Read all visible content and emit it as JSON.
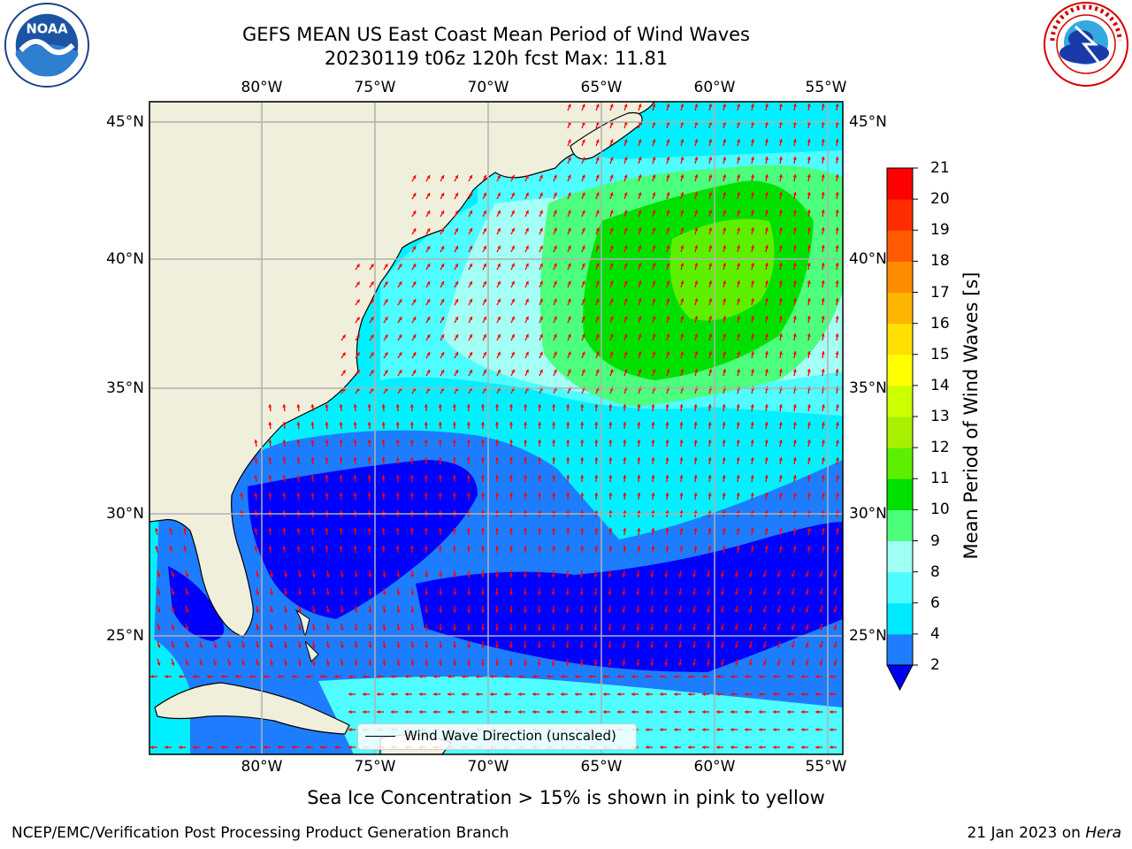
{
  "title": {
    "line1": "GEFS MEAN US East Coast Mean Period of Wind Waves",
    "line2": "20230119 t06z 120h fcst   Max: 11.81"
  },
  "map": {
    "lon_labels": [
      "80°W",
      "75°W",
      "70°W",
      "65°W",
      "60°W",
      "55°W"
    ],
    "lat_labels": [
      "45°N",
      "40°N",
      "35°N",
      "30°N",
      "25°N"
    ],
    "land_color": "#efefdc",
    "gridline_color": "#b0b0b0",
    "arrow_color": "#ff0000"
  },
  "colorbar": {
    "label": "Mean Period of Wind Waves [s]",
    "ticks": [
      "21",
      "20",
      "19",
      "18",
      "17",
      "16",
      "15",
      "14",
      "13",
      "12",
      "11",
      "10",
      "9",
      "8",
      "6",
      "4",
      "2"
    ],
    "colors": [
      "#0000ff",
      "#1e7dff",
      "#00eaff",
      "#4dfcff",
      "#a0fff5",
      "#4cff7a",
      "#00e000",
      "#5cf000",
      "#a8f000",
      "#ccff00",
      "#ffff00",
      "#ffe000",
      "#ffb400",
      "#ff8c00",
      "#ff5a00",
      "#ff2d00",
      "#ff0000"
    ],
    "extend_color": "#0000ee"
  },
  "legend": {
    "text": "Wind Wave Direction (unscaled)"
  },
  "ice_note": "Sea Ice Concentration > 15% is shown in pink to yellow",
  "footer": {
    "left": "NCEP/EMC/Verification Post Processing Product Generation Branch",
    "date": "21 Jan 2023 on ",
    "machine": "Hera"
  }
}
